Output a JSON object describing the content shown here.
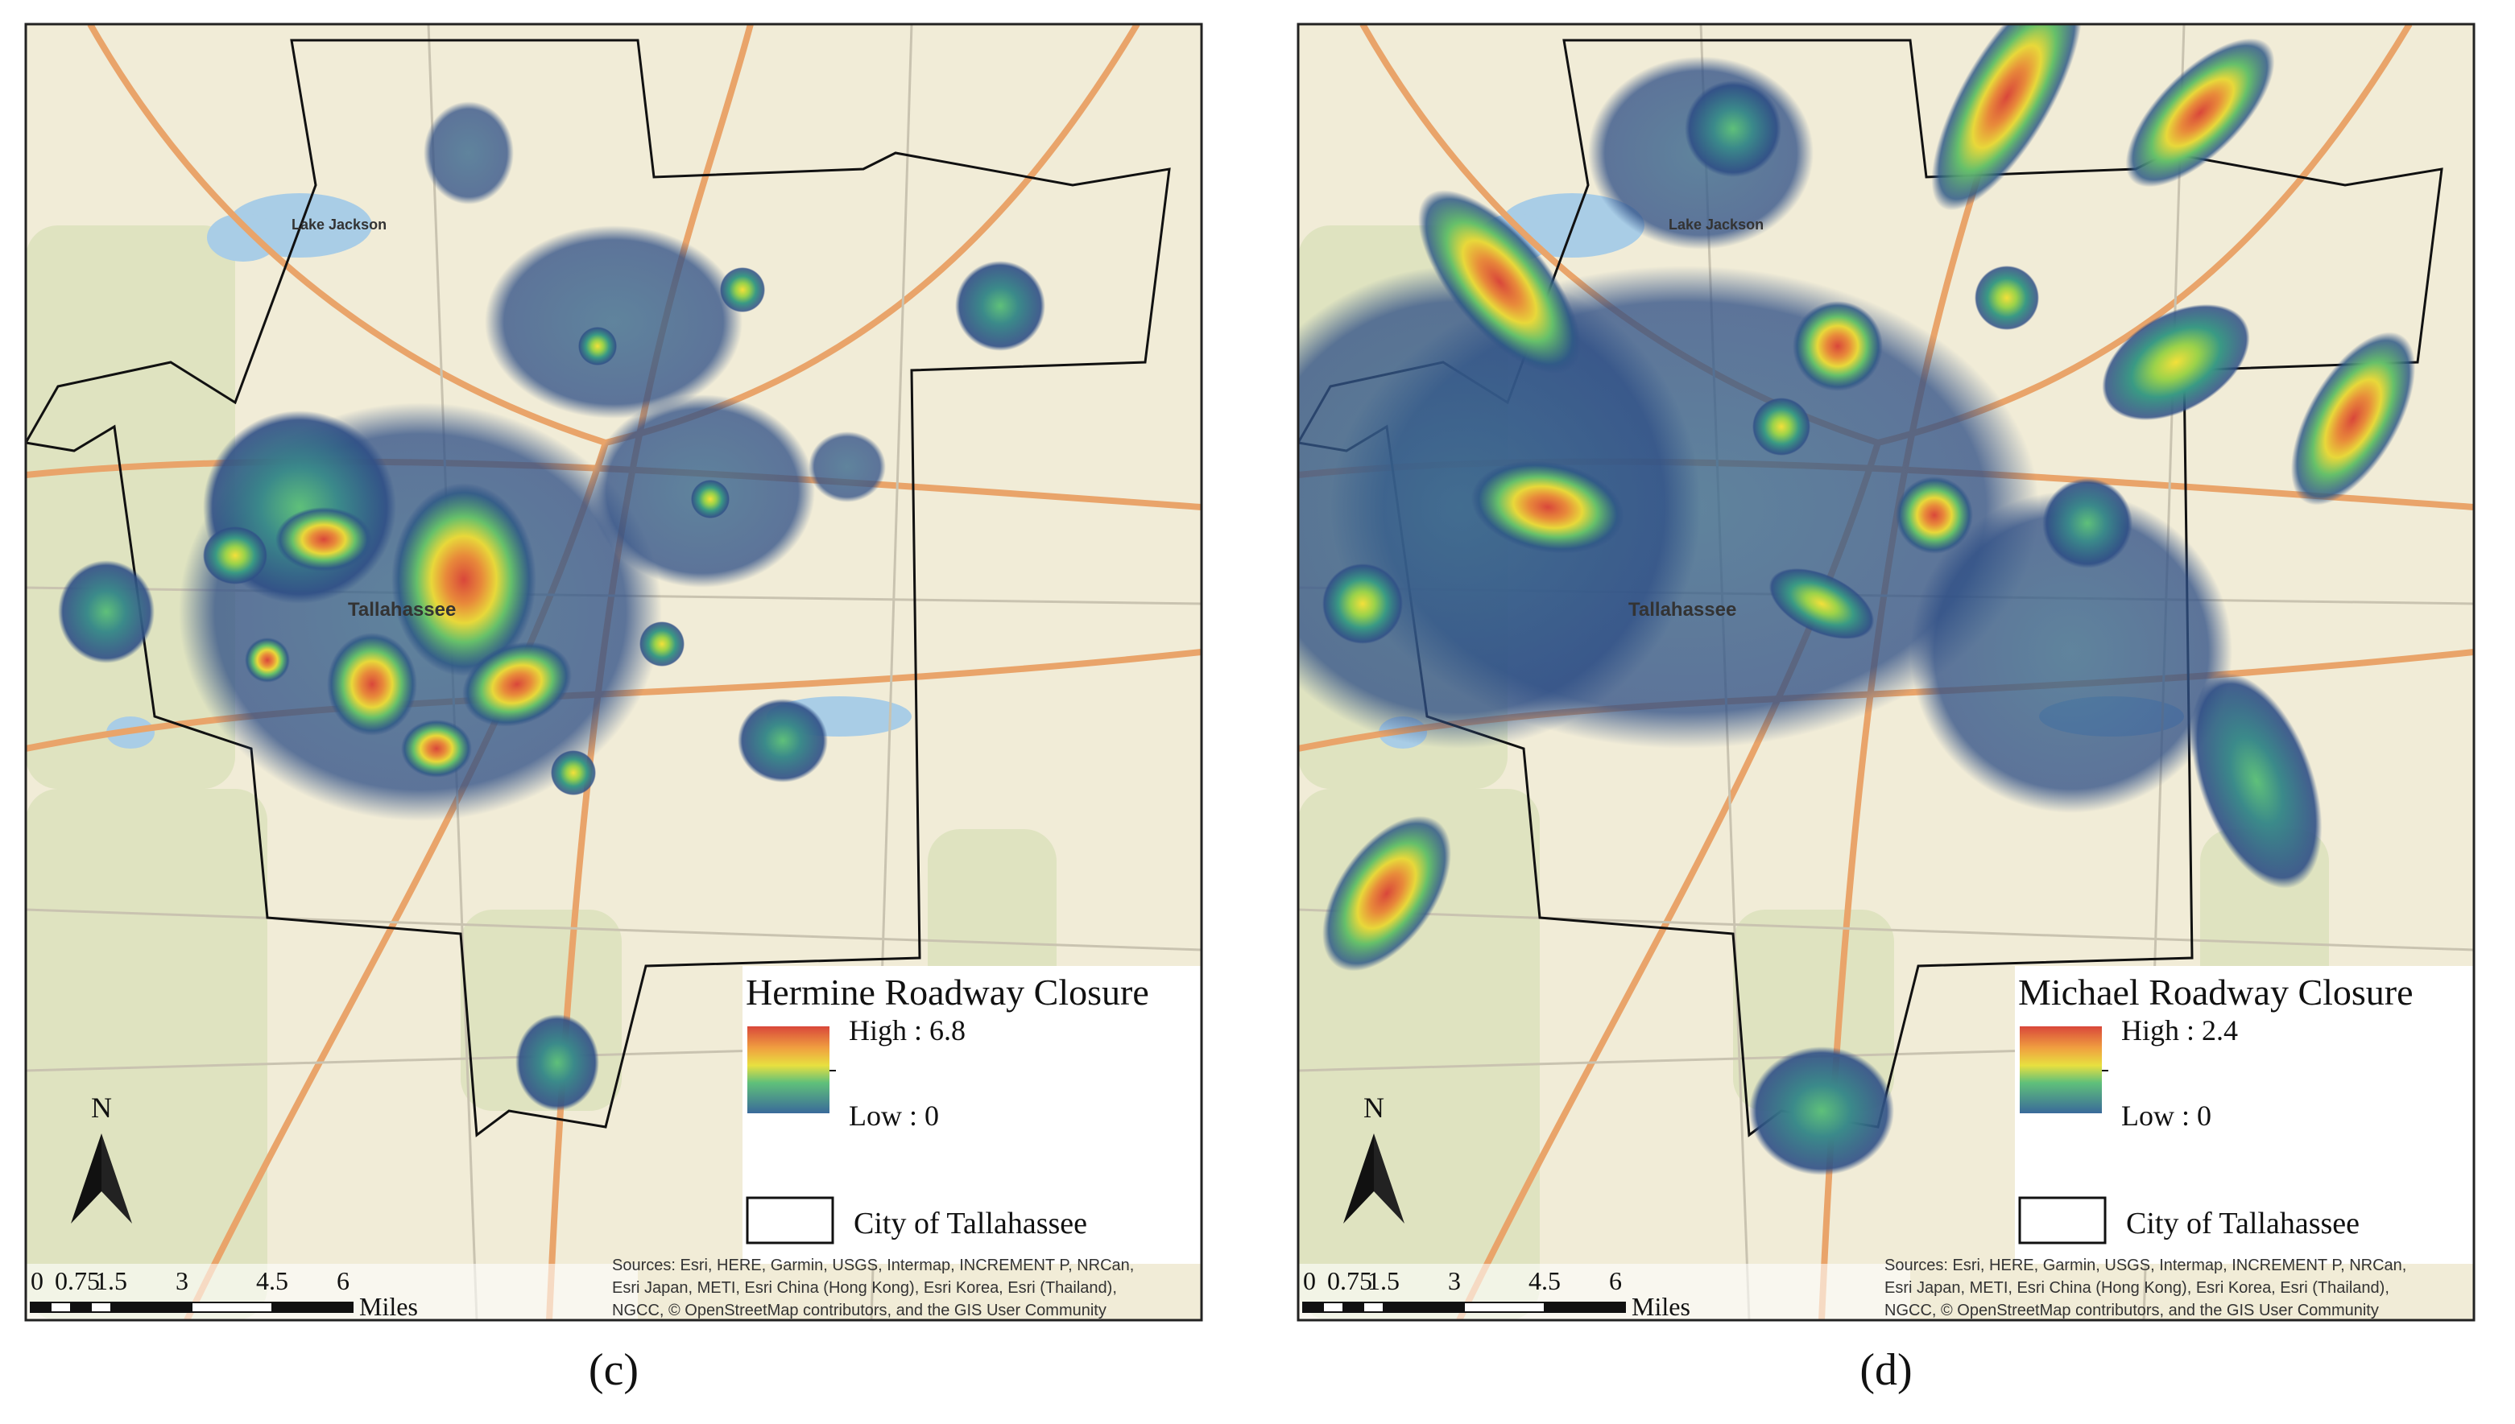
{
  "panels": [
    {
      "label": "(c)",
      "legend": {
        "title": "Hermine Roadway Closure",
        "high": "High : 6.8",
        "low": "Low : 0",
        "boundary": "City of Tallahassee"
      },
      "north": "N",
      "scale": {
        "ticks": [
          "0",
          "0.75",
          "1.5",
          "3",
          "4.5",
          "6"
        ],
        "unit": "Miles"
      },
      "sources": [
        "Sources: Esri, HERE, Garmin, USGS, Intermap, INCREMENT P, NRCan,",
        "Esri Japan, METI, Esri China (Hong Kong), Esri Korea, Esri (Thailand),",
        "NGCC, © OpenStreetMap contributors, and the GIS User Community"
      ],
      "places": [
        "Tallahassee",
        "Lake Jackson"
      ]
    },
    {
      "label": "(d)",
      "legend": {
        "title": "Michael Roadway Closure",
        "high": "High : 2.4",
        "low": "Low : 0",
        "boundary": "City of Tallahassee"
      },
      "north": "N",
      "scale": {
        "ticks": [
          "0",
          "0.75",
          "1.5",
          "3",
          "4.5",
          "6"
        ],
        "unit": "Miles"
      },
      "sources": [
        "Sources: Esri, HERE, Garmin, USGS, Intermap, INCREMENT P, NRCan,",
        "Esri Japan, METI, Esri China (Hong Kong), Esri Korea, Esri (Thailand),",
        "NGCC, © OpenStreetMap contributors, and the GIS User Community"
      ],
      "places": [
        "Tallahassee",
        "Lake Jackson"
      ]
    }
  ]
}
